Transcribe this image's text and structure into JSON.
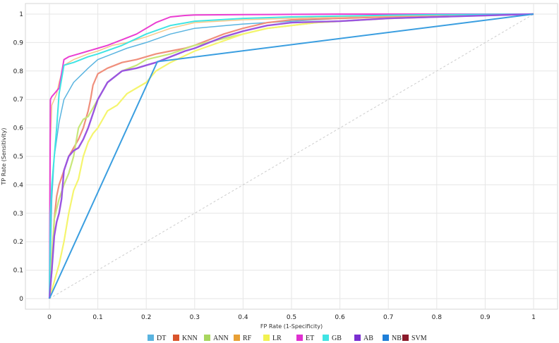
{
  "chart_data": {
    "type": "line",
    "xlabel": "FP Rate (1-Specificity)",
    "ylabel": "TP Rate (Sensitivity)",
    "xlim": [
      -0.05,
      1.05
    ],
    "ylim": [
      -0.05,
      1.03
    ],
    "x_ticks": [
      {
        "value": 0,
        "label": "0"
      },
      {
        "value": 0.1,
        "label": "0.1"
      },
      {
        "value": 0.2,
        "label": "0.2"
      },
      {
        "value": 0.3,
        "label": "0.3"
      },
      {
        "value": 0.4,
        "label": "0.4"
      },
      {
        "value": 0.5,
        "label": "0.5"
      },
      {
        "value": 0.6,
        "label": "0.6"
      },
      {
        "value": 0.7,
        "label": "0.7"
      },
      {
        "value": 0.8,
        "label": "0.8"
      },
      {
        "value": 0.9,
        "label": "0.9"
      },
      {
        "value": 1,
        "label": "1"
      }
    ],
    "y_ticks": [
      {
        "value": 0,
        "label": "0"
      },
      {
        "value": 0.1,
        "label": "0.1"
      },
      {
        "value": 0.2,
        "label": "0.2"
      },
      {
        "value": 0.3,
        "label": "0.3"
      },
      {
        "value": 0.4,
        "label": "0.4"
      },
      {
        "value": 0.5,
        "label": "0.5"
      },
      {
        "value": 0.6,
        "label": "0.6"
      },
      {
        "value": 0.7,
        "label": "0.7"
      },
      {
        "value": 0.8,
        "label": "0.8"
      },
      {
        "value": 0.9,
        "label": "0.9"
      },
      {
        "value": 1,
        "label": "1"
      }
    ],
    "grid": true,
    "legend_position": "bottom",
    "reference_line": {
      "x": [
        0,
        1
      ],
      "y": [
        0,
        1
      ],
      "style": "dashed",
      "color": "#cccccc"
    },
    "series": [
      {
        "name": "DT",
        "color": "#5ab4e0",
        "legend_color": "#5ab4e0",
        "x": [
          0,
          0.005,
          0.01,
          0.02,
          0.03,
          0.05,
          0.08,
          0.1,
          0.13,
          0.16,
          0.2,
          0.25,
          0.3,
          0.4,
          0.5,
          0.6,
          0.7,
          0.8,
          0.9,
          1
        ],
        "y": [
          0,
          0.35,
          0.5,
          0.62,
          0.7,
          0.76,
          0.81,
          0.84,
          0.86,
          0.88,
          0.9,
          0.93,
          0.95,
          0.965,
          0.975,
          0.985,
          0.99,
          0.995,
          0.998,
          1
        ]
      },
      {
        "name": "KNN",
        "color": "#f08f7c",
        "legend_color": "#d9542c",
        "x": [
          0,
          0.005,
          0.01,
          0.015,
          0.02,
          0.03,
          0.04,
          0.05,
          0.06,
          0.07,
          0.08,
          0.085,
          0.09,
          0.1,
          0.12,
          0.15,
          0.18,
          0.2,
          0.22,
          0.25,
          0.28,
          0.3,
          0.33,
          0.36,
          0.4,
          0.45,
          0.5,
          0.6,
          0.7,
          0.8,
          0.9,
          1
        ],
        "y": [
          0,
          0.1,
          0.28,
          0.36,
          0.4,
          0.45,
          0.5,
          0.53,
          0.56,
          0.6,
          0.66,
          0.7,
          0.75,
          0.79,
          0.81,
          0.83,
          0.84,
          0.85,
          0.86,
          0.87,
          0.88,
          0.89,
          0.91,
          0.93,
          0.95,
          0.97,
          0.98,
          0.985,
          0.99,
          0.995,
          0.998,
          1
        ]
      },
      {
        "name": "ANN",
        "color": "#c8e87a",
        "legend_color": "#a8d65e",
        "x": [
          0,
          0.005,
          0.01,
          0.02,
          0.03,
          0.04,
          0.05,
          0.06,
          0.07,
          0.08,
          0.1,
          0.12,
          0.15,
          0.18,
          0.2,
          0.25,
          0.3,
          0.35,
          0.4,
          0.45,
          0.5,
          0.55,
          0.6,
          0.7,
          0.8,
          0.9,
          1
        ],
        "y": [
          0,
          0.15,
          0.28,
          0.35,
          0.4,
          0.44,
          0.5,
          0.6,
          0.63,
          0.64,
          0.7,
          0.76,
          0.8,
          0.82,
          0.84,
          0.86,
          0.89,
          0.91,
          0.93,
          0.95,
          0.96,
          0.97,
          0.975,
          0.985,
          0.99,
          0.995,
          1
        ]
      },
      {
        "name": "RF",
        "color": "#f5c98a",
        "legend_color": "#e8a035",
        "x": [
          0,
          0.002,
          0.005,
          0.01,
          0.015,
          0.02,
          0.03,
          0.05,
          0.08,
          0.1,
          0.13,
          0.16,
          0.2,
          0.25,
          0.3,
          0.4,
          0.5,
          0.6,
          0.7,
          0.8,
          0.9,
          1
        ],
        "y": [
          0,
          0.55,
          0.68,
          0.7,
          0.72,
          0.76,
          0.82,
          0.84,
          0.86,
          0.87,
          0.89,
          0.9,
          0.92,
          0.95,
          0.97,
          0.98,
          0.985,
          0.99,
          0.993,
          0.996,
          0.998,
          1
        ]
      },
      {
        "name": "LR",
        "color": "#f5f56e",
        "legend_color": "#f2f250",
        "x": [
          0,
          0.02,
          0.03,
          0.04,
          0.05,
          0.06,
          0.07,
          0.08,
          0.09,
          0.1,
          0.11,
          0.12,
          0.14,
          0.16,
          0.18,
          0.2,
          0.22,
          0.25,
          0.3,
          0.35,
          0.4,
          0.45,
          0.5,
          0.55,
          0.6,
          0.7,
          0.8,
          0.9,
          1
        ],
        "y": [
          0,
          0.12,
          0.2,
          0.3,
          0.38,
          0.42,
          0.5,
          0.55,
          0.58,
          0.6,
          0.63,
          0.66,
          0.68,
          0.72,
          0.74,
          0.76,
          0.8,
          0.83,
          0.87,
          0.9,
          0.93,
          0.95,
          0.96,
          0.97,
          0.975,
          0.985,
          0.99,
          0.995,
          1
        ]
      },
      {
        "name": "ET",
        "color": "#ea3ed2",
        "legend_color": "#e030d0",
        "x": [
          0,
          0.002,
          0.005,
          0.01,
          0.02,
          0.03,
          0.04,
          0.06,
          0.08,
          0.1,
          0.12,
          0.15,
          0.18,
          0.2,
          0.22,
          0.25,
          0.28,
          0.3,
          0.4,
          0.5,
          0.6,
          0.7,
          0.8,
          0.9,
          1
        ],
        "y": [
          0,
          0.7,
          0.71,
          0.72,
          0.74,
          0.84,
          0.85,
          0.86,
          0.87,
          0.88,
          0.89,
          0.91,
          0.93,
          0.95,
          0.97,
          0.99,
          0.995,
          0.997,
          0.998,
          0.999,
          1,
          1,
          1,
          1,
          1
        ]
      },
      {
        "name": "GB",
        "color": "#40e4e4",
        "legend_color": "#40e4e4",
        "x": [
          0,
          0.002,
          0.005,
          0.01,
          0.015,
          0.02,
          0.03,
          0.05,
          0.08,
          0.1,
          0.15,
          0.2,
          0.25,
          0.3,
          0.4,
          0.5,
          0.6,
          0.7,
          0.8,
          0.9,
          1
        ],
        "y": [
          0,
          0.3,
          0.4,
          0.5,
          0.6,
          0.72,
          0.82,
          0.83,
          0.85,
          0.86,
          0.89,
          0.93,
          0.96,
          0.975,
          0.985,
          0.99,
          0.993,
          0.996,
          0.998,
          0.999,
          1
        ]
      },
      {
        "name": "AB",
        "color": "#9a55e0",
        "legend_color": "#7a2fd0",
        "x": [
          0,
          0.005,
          0.01,
          0.015,
          0.02,
          0.025,
          0.03,
          0.04,
          0.05,
          0.06,
          0.07,
          0.08,
          0.09,
          0.1,
          0.12,
          0.15,
          0.18,
          0.2,
          0.22,
          0.25,
          0.28,
          0.3,
          0.33,
          0.36,
          0.4,
          0.45,
          0.5,
          0.6,
          0.7,
          0.8,
          0.9,
          1
        ],
        "y": [
          0,
          0.1,
          0.22,
          0.27,
          0.3,
          0.35,
          0.45,
          0.5,
          0.52,
          0.53,
          0.56,
          0.6,
          0.65,
          0.7,
          0.76,
          0.8,
          0.81,
          0.82,
          0.83,
          0.85,
          0.87,
          0.88,
          0.9,
          0.92,
          0.94,
          0.96,
          0.97,
          0.975,
          0.985,
          0.99,
          0.995,
          1
        ]
      },
      {
        "name": "NB",
        "color": "#3a9ee0",
        "legend_color": "#1f7fd8",
        "x": [
          0,
          0.223,
          1
        ],
        "y": [
          0,
          0.833,
          1
        ]
      },
      {
        "name": "SVM",
        "color": "#8b1a2b",
        "legend_color": "#8b1a2b",
        "x": [],
        "y": []
      }
    ]
  }
}
